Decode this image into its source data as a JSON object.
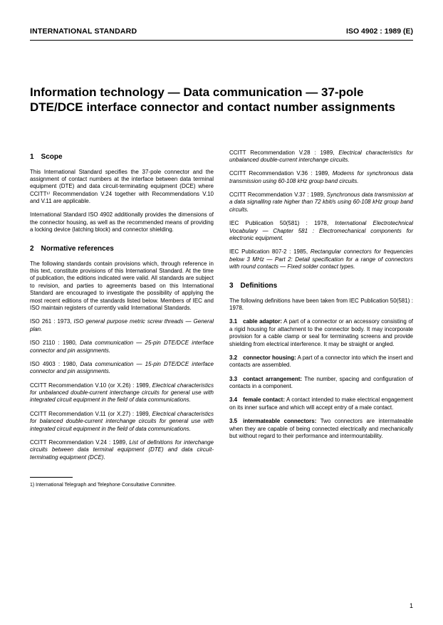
{
  "header": {
    "left": "INTERNATIONAL STANDARD",
    "right": "ISO 4902 : 1989 (E)"
  },
  "title": "Information technology — Data communication — 37-pole DTE/DCE interface connector and contact number assignments",
  "left_col": {
    "scope_heading": "1 Scope",
    "scope_p1": "This International Standard specifies the 37-pole connector and the assignment of contact numbers at the interface between data terminal equipment (DTE) and data circuit-terminating equipment (DCE) where CCITT¹⁾ Recommendation V.24 together with Recommendations V.10 and V.11 are applicable.",
    "scope_p2": "International Standard ISO 4902 additionally provides the dimensions of the connector housing, as well as the recommended means of providing a locking device (latching block) and connector shielding.",
    "normref_heading": "2 Normative references",
    "normref_p1": "The following standards contain provisions which, through reference in this text, constitute provisions of this International Standard. At the time of publication, the editions indicated were valid. All standards are subject to revision, and parties to agreements based on this International Standard are encouraged to investigate the possibility of applying the most recent editions of the standards listed below. Members of IEC and ISO maintain registers of currently valid International Standards.",
    "refs": [
      {
        "pre": "ISO 261 : 1973, ",
        "title": "ISO general purpose metric screw threads — General plan."
      },
      {
        "pre": "ISO 2110 : 1980, ",
        "title": "Data communication — 25-pin DTE/DCE interface connector and pin assignments."
      },
      {
        "pre": "ISO 4903 : 1980, ",
        "title": "Data communication — 15-pin DTE/DCE interface connector and pin assignments."
      },
      {
        "pre": "CCITT Recommendation V.10 (or X.26) : 1989, ",
        "title": "Electrical characteristics for unbalanced double-current interchange circuits for general use with integrated circuit equipment in the field of data communications."
      },
      {
        "pre": "CCITT Recommendation V.11 (or X.27) : 1989, ",
        "title": "Electrical characteristics for balanced double-current interchange circuits for general use with integrated circuit equipment in the field of data communications."
      },
      {
        "pre": "CCITT Recommendation V.24 : 1989, ",
        "title": "List of definitions for interchange circuits between data terminal equipment (DTE) and data circuit-terminating equipment (DCE)."
      }
    ],
    "footnote": "1)  International Telegraph and Telephone Consultative Committee."
  },
  "right_col": {
    "refs": [
      {
        "pre": "CCITT Recommendation V.28 : 1989, ",
        "title": "Electrical characteristics for unbalanced double-current interchange circuits."
      },
      {
        "pre": "CCITT Recommendation V.36 : 1989, ",
        "title": "Modems for synchronous data transmission using 60-108 kHz group band circuits."
      },
      {
        "pre": "CCITT Recommendation V.37 : 1989, ",
        "title": "Synchronous data transmission at a data signalling rate higher than 72 kbit/s using 60-108 kHz group band circuits."
      },
      {
        "pre": "IEC Publication 50(581) : 1978, ",
        "title": "International Electrotechnical Vocabulary — Chapter 581 : Electromechanical components for electronic equipment."
      },
      {
        "pre": "IEC Publication 807-2 : 1985, ",
        "title": "Rectangular connectors for frequencies below 3 MHz — Part 2: Detail specification for a range of connectors with round contacts — Fixed solder contact types."
      }
    ],
    "defs_heading": "3 Definitions",
    "defs_intro": "The following definitions have been taken from IEC Publication 50(581) : 1978.",
    "defs": [
      {
        "num": "3.1",
        "term": "cable adaptor:",
        "body": " A part of a connector or an accessory consisting of a rigid housing for attachment to the connector body. It may incorporate provision for a cable clamp or seal for terminating screens and provide shielding from electrical interference. It may be straight or angled."
      },
      {
        "num": "3.2",
        "term": "connector housing:",
        "body": " A part of a connector into which the insert and contacts are assembled."
      },
      {
        "num": "3.3",
        "term": "contact arrangement:",
        "body": " The number, spacing and configuration of contacts in a component."
      },
      {
        "num": "3.4",
        "term": "female contact:",
        "body": " A contact intended to make electrical engagement on its inner surface and which will accept entry of a male contact."
      },
      {
        "num": "3.5",
        "term": "intermateable connectors:",
        "body": " Two connectors are intermateable when they are capable of being connected electrically and mechanically but without regard to their performance and intermountability."
      }
    ]
  },
  "page_number": "1"
}
